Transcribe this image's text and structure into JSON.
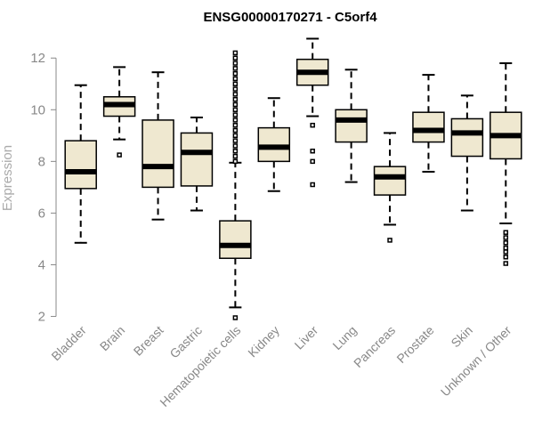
{
  "chart_data": {
    "type": "boxplot",
    "title": "ENSG00000170271 - C5orf4",
    "ylabel": "Expression",
    "xlabel": "",
    "ylim": [
      1.95,
      12.8
    ],
    "yticks": [
      2,
      4,
      6,
      8,
      10,
      12
    ],
    "grid": false,
    "box_color": "#efe8d0",
    "categories": [
      "Bladder",
      "Brain",
      "Breast",
      "Gastric",
      "Hematopoietic cells",
      "Kidney",
      "Liver",
      "Lung",
      "Pancreas",
      "Prostate",
      "Skin",
      "Unknown / Other"
    ],
    "boxes": [
      {
        "q1": 6.95,
        "median": 7.6,
        "q3": 8.8,
        "whisker_low": 4.85,
        "whisker_high": 10.95,
        "outliers": []
      },
      {
        "q1": 9.75,
        "median": 10.2,
        "q3": 10.5,
        "whisker_low": 8.85,
        "whisker_high": 11.65,
        "outliers": [
          8.25
        ]
      },
      {
        "q1": 7.0,
        "median": 7.8,
        "q3": 9.6,
        "whisker_low": 5.75,
        "whisker_high": 11.45,
        "outliers": []
      },
      {
        "q1": 7.05,
        "median": 8.35,
        "q3": 9.1,
        "whisker_low": 6.1,
        "whisker_high": 9.7,
        "outliers": []
      },
      {
        "q1": 4.25,
        "median": 4.75,
        "q3": 5.7,
        "whisker_low": 2.35,
        "whisker_high": 7.95,
        "outliers": [
          1.95,
          8.0,
          8.2,
          8.4,
          8.6,
          8.8,
          9.0,
          9.2,
          9.4,
          9.6,
          9.8,
          10.0,
          10.2,
          10.4,
          10.6,
          10.8,
          11.0,
          11.2,
          11.4,
          11.6,
          11.8,
          12.0,
          12.2
        ]
      },
      {
        "q1": 8.0,
        "median": 8.55,
        "q3": 9.3,
        "whisker_low": 6.85,
        "whisker_high": 10.45,
        "outliers": []
      },
      {
        "q1": 10.95,
        "median": 11.45,
        "q3": 11.95,
        "whisker_low": 9.75,
        "whisker_high": 12.75,
        "outliers": [
          7.1,
          8.0,
          8.4,
          9.4
        ]
      },
      {
        "q1": 8.75,
        "median": 9.6,
        "q3": 10.0,
        "whisker_low": 7.2,
        "whisker_high": 11.55,
        "outliers": []
      },
      {
        "q1": 6.7,
        "median": 7.4,
        "q3": 7.8,
        "whisker_low": 5.55,
        "whisker_high": 9.1,
        "outliers": [
          4.95
        ]
      },
      {
        "q1": 8.75,
        "median": 9.2,
        "q3": 9.9,
        "whisker_low": 7.6,
        "whisker_high": 11.35,
        "outliers": []
      },
      {
        "q1": 8.2,
        "median": 9.1,
        "q3": 9.65,
        "whisker_low": 6.1,
        "whisker_high": 10.55,
        "outliers": []
      },
      {
        "q1": 8.1,
        "median": 9.0,
        "q3": 9.9,
        "whisker_low": 5.6,
        "whisker_high": 11.8,
        "outliers": [
          4.05,
          4.3,
          4.5,
          4.65,
          4.85,
          5.05,
          5.25
        ]
      }
    ]
  }
}
